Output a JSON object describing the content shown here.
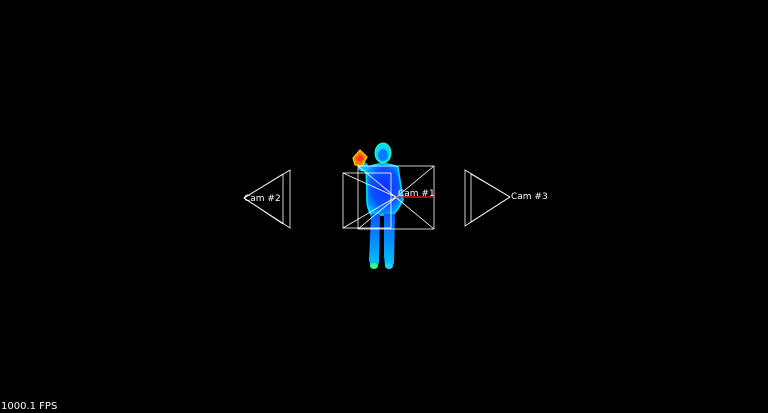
{
  "viewer": {
    "fps_label": "1000.1 FPS",
    "background_color": "#000000",
    "wireframe_color": "#ffffff",
    "axis_color": "#ff2020"
  },
  "cameras": [
    {
      "id": "cam-1",
      "label": "Cam #1"
    },
    {
      "id": "cam-2",
      "label": "Cam #2"
    },
    {
      "id": "cam-3",
      "label": "Cam #3"
    }
  ],
  "point_cloud": {
    "subject": "person",
    "colormap": "jet"
  }
}
